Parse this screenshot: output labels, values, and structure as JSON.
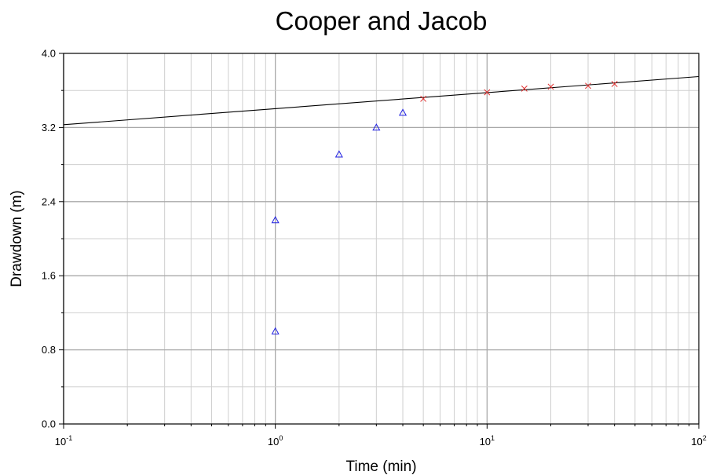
{
  "chart_data": {
    "type": "scatter",
    "title": "Cooper and Jacob",
    "xlabel": "Time (min)",
    "ylabel": "Drawdown (m)",
    "x_scale": "log",
    "xlim": [
      0.1,
      100
    ],
    "ylim": [
      0,
      4
    ],
    "grid": true,
    "x_ticks": [
      {
        "base": "10",
        "exp": "-1"
      },
      {
        "base": "10",
        "exp": "0"
      },
      {
        "base": "10",
        "exp": "1"
      },
      {
        "base": "10",
        "exp": "2"
      }
    ],
    "y_ticks": [
      "0.0",
      "0.8",
      "1.6",
      "2.4",
      "3.2",
      "4.0"
    ],
    "series": [
      {
        "marker": "triangle",
        "color": "#2020e0",
        "x": [
          1,
          1,
          2,
          3,
          4
        ],
        "y": [
          1.0,
          2.2,
          2.91,
          3.2,
          3.36
        ]
      },
      {
        "marker": "x",
        "color": "#e03030",
        "x": [
          5,
          10,
          15,
          20,
          30,
          40
        ],
        "y": [
          3.51,
          3.58,
          3.62,
          3.64,
          3.65,
          3.67
        ]
      }
    ],
    "fit_line": {
      "color": "#000000",
      "x": [
        0.1,
        100
      ],
      "y": [
        3.23,
        3.75
      ]
    }
  }
}
